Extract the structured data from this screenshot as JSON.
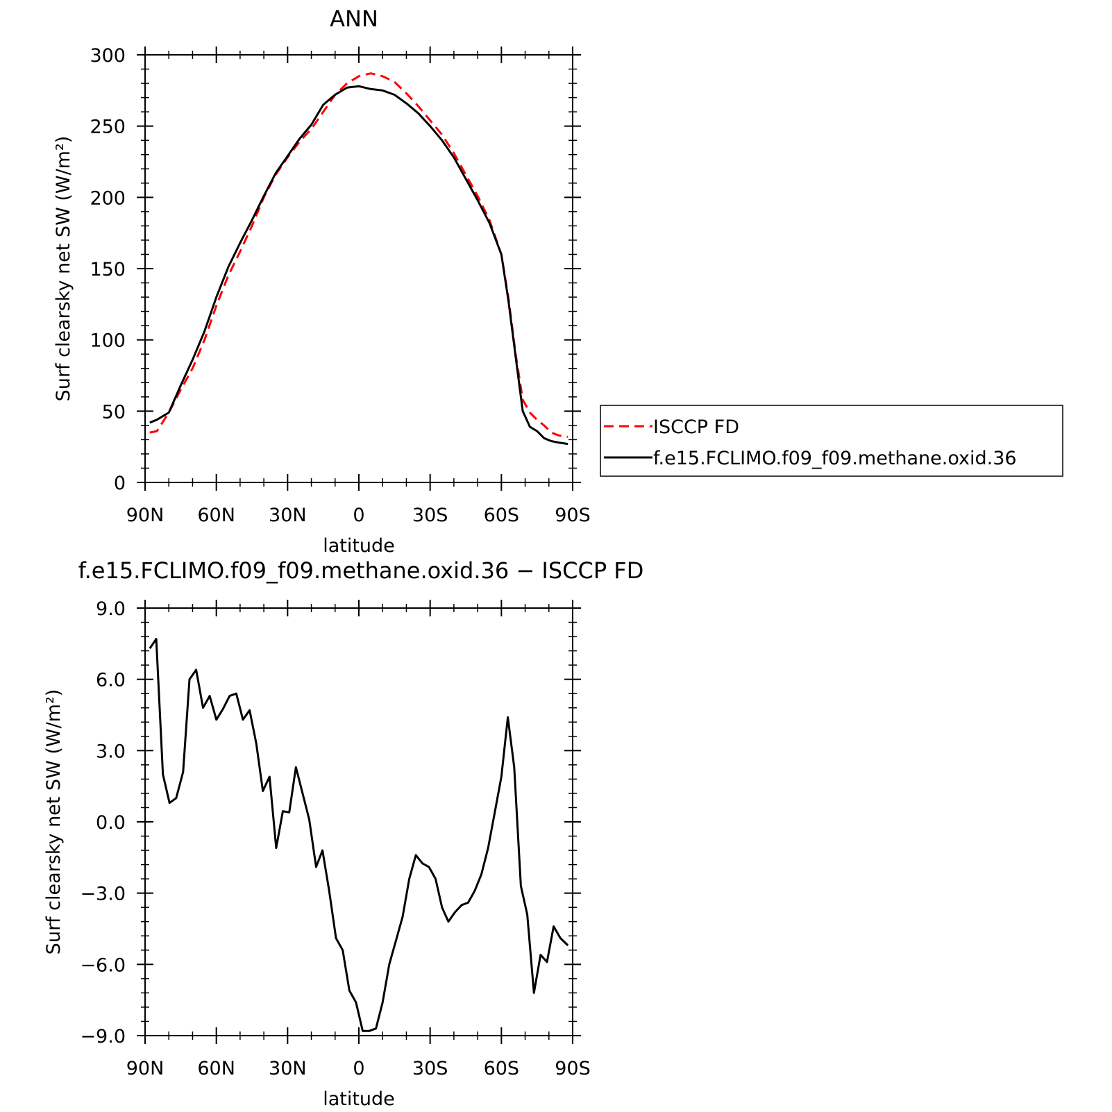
{
  "chart_data": [
    {
      "type": "line",
      "title": "ANN",
      "xlabel": "latitude",
      "ylabel": "Surf clearsky net SW (W/m²)",
      "xlim": [
        90,
        -90
      ],
      "ylim": [
        0,
        300
      ],
      "xticks": [
        {
          "value": 90,
          "label": "90N"
        },
        {
          "value": 60,
          "label": "60N"
        },
        {
          "value": 30,
          "label": "30N"
        },
        {
          "value": 0,
          "label": "0"
        },
        {
          "value": -30,
          "label": "30S"
        },
        {
          "value": -60,
          "label": "60S"
        },
        {
          "value": -90,
          "label": "90S"
        }
      ],
      "yticks": [
        {
          "value": 0,
          "label": "0"
        },
        {
          "value": 50,
          "label": "50"
        },
        {
          "value": 100,
          "label": "100"
        },
        {
          "value": 150,
          "label": "150"
        },
        {
          "value": 200,
          "label": "200"
        },
        {
          "value": 250,
          "label": "250"
        },
        {
          "value": 300,
          "label": "300"
        }
      ],
      "grid": false,
      "legend_position": "right",
      "series": [
        {
          "name": "ISCCP FD",
          "color": "#ff0000",
          "dash": "dashed",
          "x": [
            88,
            85,
            80,
            75,
            70,
            65,
            60,
            55,
            50,
            45,
            40,
            35,
            30,
            25,
            20,
            15,
            10,
            5,
            0,
            -5,
            -10,
            -15,
            -20,
            -25,
            -30,
            -35,
            -40,
            -45,
            -50,
            -55,
            -60,
            -63,
            -66,
            -69,
            -72,
            -75,
            -78,
            -81,
            -84,
            -88
          ],
          "values": [
            35,
            36,
            49,
            65,
            80,
            100,
            124,
            145,
            162,
            180,
            200,
            216,
            228,
            239,
            248,
            260,
            272,
            280,
            285,
            287,
            285,
            281,
            273,
            264,
            254,
            244,
            231,
            216,
            201,
            184,
            160,
            129,
            90,
            58,
            49,
            44,
            40,
            35,
            33,
            32
          ]
        },
        {
          "name": "f.e15.FCLIMO.f09_f09.methane.oxid.36",
          "color": "#000000",
          "dash": "solid",
          "x": [
            88,
            85,
            80,
            75,
            70,
            65,
            60,
            55,
            50,
            45,
            40,
            35,
            30,
            25,
            20,
            15,
            10,
            5,
            0,
            -5,
            -10,
            -15,
            -20,
            -25,
            -30,
            -35,
            -40,
            -45,
            -50,
            -55,
            -60,
            -63,
            -66,
            -69,
            -72,
            -75,
            -78,
            -81,
            -84,
            -88
          ],
          "values": [
            42,
            44,
            49,
            68,
            86,
            106,
            130,
            151,
            168,
            184,
            201,
            217,
            229,
            241,
            251,
            265,
            272,
            277,
            278,
            276,
            275,
            272,
            266,
            259,
            250,
            240,
            228,
            213,
            198,
            182,
            160,
            127,
            88,
            50,
            39,
            36,
            31,
            29,
            28,
            27
          ]
        }
      ]
    },
    {
      "type": "line",
      "title": "f.e15.FCLIMO.f09_f09.methane.oxid.36 − ISCCP FD",
      "xlabel": "latitude",
      "ylabel": "Surf clearsky net SW (W/m²)",
      "xlim": [
        90,
        -90
      ],
      "ylim": [
        -9,
        9
      ],
      "xticks": [
        {
          "value": 90,
          "label": "90N"
        },
        {
          "value": 60,
          "label": "60N"
        },
        {
          "value": 30,
          "label": "30N"
        },
        {
          "value": 0,
          "label": "0"
        },
        {
          "value": -30,
          "label": "30S"
        },
        {
          "value": -60,
          "label": "60S"
        },
        {
          "value": -90,
          "label": "90S"
        }
      ],
      "yticks": [
        {
          "value": -9,
          "label": "−9.0"
        },
        {
          "value": -6,
          "label": "−6.0"
        },
        {
          "value": -3,
          "label": "−3.0"
        },
        {
          "value": 0,
          "label": "0.0"
        },
        {
          "value": 3,
          "label": "3.0"
        },
        {
          "value": 6,
          "label": "6.0"
        },
        {
          "value": 9,
          "label": "9.0"
        }
      ],
      "grid": false,
      "series": [
        {
          "color": "#000000",
          "dash": "solid",
          "x": [
            88,
            85.3,
            82.5,
            79.7,
            76.9,
            74,
            71.3,
            68.5,
            65.6,
            62.8,
            60,
            57.2,
            54.4,
            51.6,
            48.8,
            46,
            43.2,
            40.4,
            37.6,
            34.8,
            32,
            29.3,
            26.5,
            23.7,
            20.9,
            18,
            15.3,
            12.5,
            9.6,
            6.8,
            4,
            1.2,
            -1.6,
            -4.4,
            -7.2,
            -10,
            -12.8,
            -15.6,
            -18.4,
            -21.2,
            -24,
            -26.8,
            -29.5,
            -32.3,
            -35,
            -37.7,
            -40.5,
            -43.3,
            -46,
            -48.8,
            -51.6,
            -54.4,
            -57.2,
            -60,
            -62.7,
            -65.4,
            -68.2,
            -70.9,
            -73.7,
            -76.5,
            -79.2,
            -82,
            -84.9,
            -88
          ],
          "values": [
            7.3,
            7.7,
            2.0,
            0.8,
            1.0,
            2.1,
            6.0,
            6.4,
            4.8,
            5.3,
            4.3,
            4.75,
            5.3,
            5.4,
            4.3,
            4.7,
            3.3,
            1.3,
            1.9,
            -1.1,
            0.45,
            0.4,
            2.3,
            1.2,
            0.1,
            -1.9,
            -1.2,
            -2.9,
            -4.9,
            -5.4,
            -7.1,
            -7.6,
            -8.8,
            -8.8,
            -8.7,
            -7.6,
            -6.0,
            -5.0,
            -4.0,
            -2.4,
            -1.4,
            -1.75,
            -1.9,
            -2.4,
            -3.6,
            -4.2,
            -3.8,
            -3.5,
            -3.4,
            -2.9,
            -2.2,
            -1.1,
            0.4,
            1.9,
            4.4,
            2.3,
            -2.7,
            -3.9,
            -7.2,
            -5.6,
            -5.9,
            -4.4,
            -4.9,
            -5.2
          ]
        }
      ]
    }
  ]
}
